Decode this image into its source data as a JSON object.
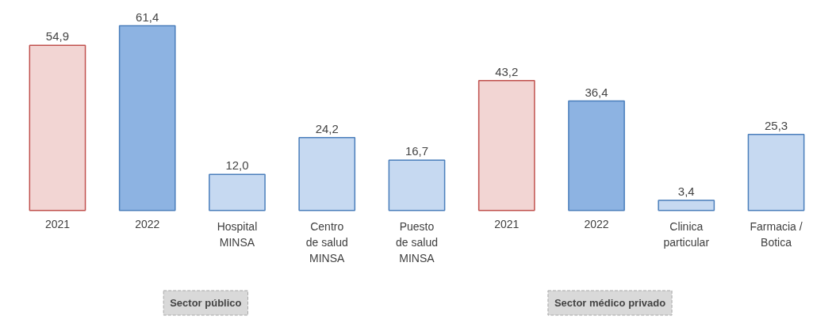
{
  "chart_data": {
    "type": "bar",
    "categories": [
      "2021",
      "2022",
      "Hospital\nMINSA",
      "Centro\nde salud\nMINSA",
      "Puesto\nde salud\nMINSA",
      "2021",
      "2022",
      "Clinica\nparticular",
      "Farmacia /\nBotica"
    ],
    "values": [
      54.9,
      61.4,
      12.0,
      24.2,
      16.7,
      43.2,
      36.4,
      3.4,
      25.3
    ],
    "value_labels": [
      "54,9",
      "61,4",
      "12,0",
      "24,2",
      "16,7",
      "43,2",
      "36,4",
      "3,4",
      "25,3"
    ],
    "colors": [
      "#f2d5d3",
      "#8db3e2",
      "#c6d9f1",
      "#c6d9f1",
      "#c6d9f1",
      "#f2d5d3",
      "#8db3e2",
      "#c6d9f1",
      "#c6d9f1"
    ],
    "tick_labels": "x",
    "annotations": [
      "Sector público",
      "Sector médico privado"
    ]
  }
}
